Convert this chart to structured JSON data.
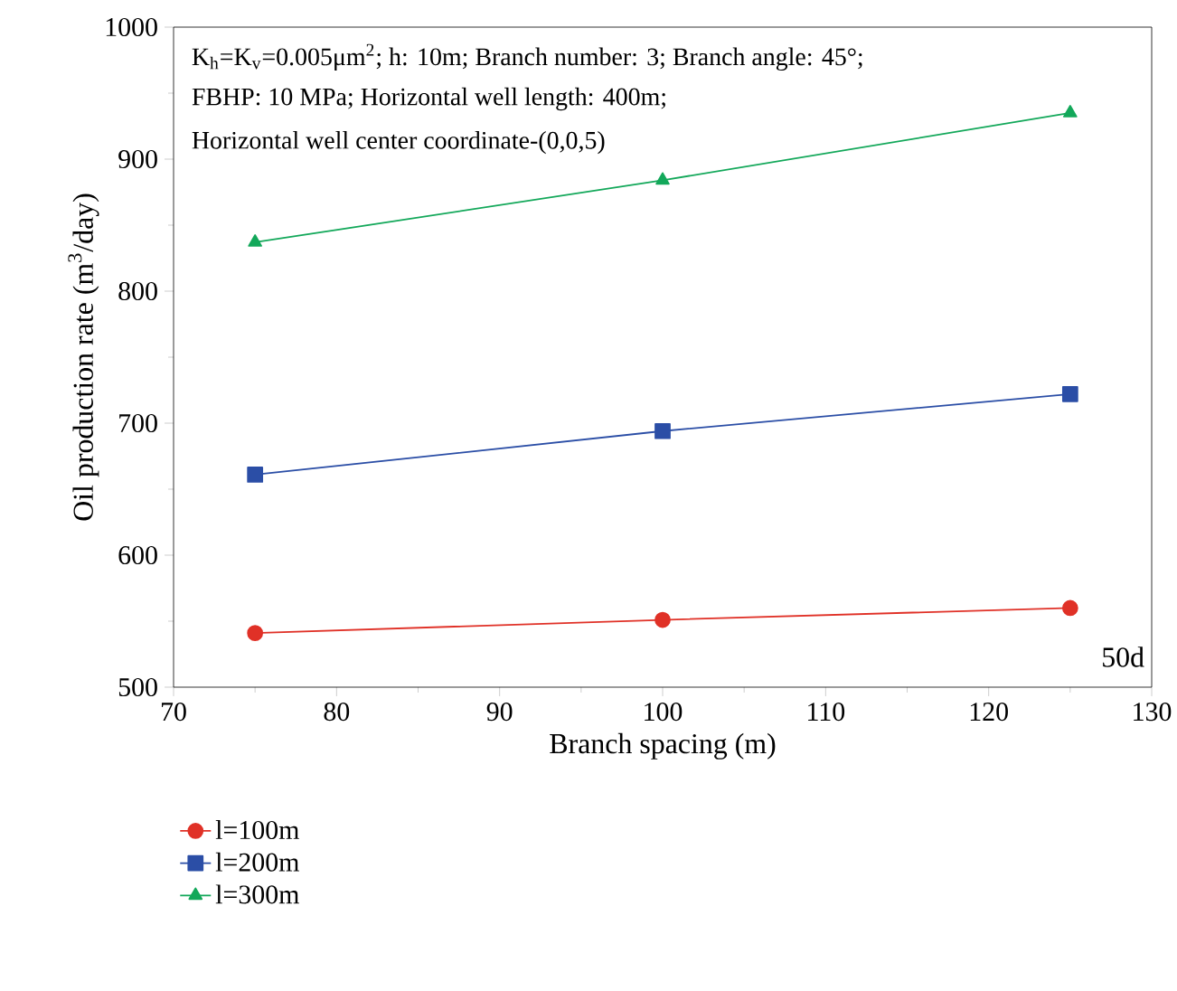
{
  "chart_data": {
    "type": "line",
    "xlabel": "Branch spacing (m)",
    "ylabel": "Oil production rate (m$^{3}$/day)",
    "x": [
      75,
      100,
      125
    ],
    "series": [
      {
        "name": "l=100m",
        "color": "#e03127",
        "marker": "circle",
        "values": [
          541,
          551,
          560
        ]
      },
      {
        "name": "l=200m",
        "color": "#2b4ea6",
        "marker": "square",
        "values": [
          661,
          694,
          722
        ]
      },
      {
        "name": "l=300m",
        "color": "#13a85a",
        "marker": "triangle",
        "values": [
          837,
          884,
          935
        ]
      }
    ],
    "xlim": [
      70,
      130
    ],
    "xticks": [
      70,
      80,
      90,
      100,
      110,
      120,
      130
    ],
    "ylim": [
      500,
      1000
    ],
    "yticks": [
      500,
      600,
      700,
      800,
      900,
      1000
    ],
    "legend": "bottom left",
    "grid": false,
    "line_style": "solid",
    "annotations": [
      "K$_{h}$=K$_{v}$=0.005μm$^{2}$; h: 10m; Branch number: 3; Branch angle: 45°;",
      "FBHP: 10 MPa; Horizontal well length: 400m;",
      "Horizontal well center coordinate-(0,0,5)",
      "50d"
    ]
  }
}
